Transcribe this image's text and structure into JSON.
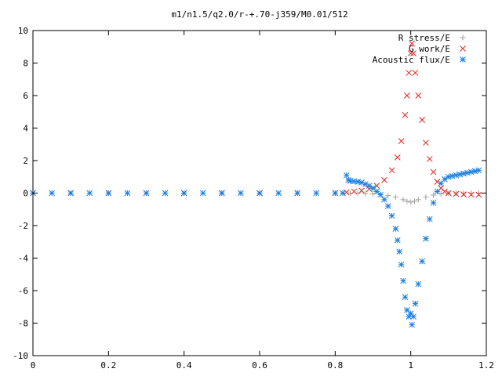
{
  "chart_data": {
    "type": "scatter",
    "title": "m1/n1.5/q2.0/r-+.70-j359/M0.01/512",
    "xlabel": "",
    "ylabel": "",
    "xlim": [
      0,
      1.2
    ],
    "ylim": [
      -10,
      10
    ],
    "x_ticks": [
      "0",
      "0.2",
      "0.4",
      "0.6",
      "0.8",
      "1",
      "1.2"
    ],
    "y_ticks": [
      "10",
      "8",
      "6",
      "4",
      "2",
      "0",
      "-2",
      "-4",
      "-6",
      "-8",
      "-10"
    ],
    "grid": false,
    "legend_position": "top-right",
    "series": [
      {
        "name": "R stress/E",
        "marker": "plus",
        "color": "#a0a0a0",
        "points": [
          [
            0.0,
            0.0
          ],
          [
            0.1,
            0.0
          ],
          [
            0.2,
            0.0
          ],
          [
            0.3,
            0.0
          ],
          [
            0.4,
            0.0
          ],
          [
            0.5,
            0.0
          ],
          [
            0.6,
            0.0
          ],
          [
            0.7,
            0.0
          ],
          [
            0.8,
            0.0
          ],
          [
            0.84,
            0.0
          ],
          [
            0.86,
            0.0
          ],
          [
            0.88,
            -0.02
          ],
          [
            0.9,
            -0.05
          ],
          [
            0.92,
            -0.08
          ],
          [
            0.94,
            -0.15
          ],
          [
            0.96,
            -0.25
          ],
          [
            0.98,
            -0.4
          ],
          [
            0.99,
            -0.5
          ],
          [
            1.0,
            -0.55
          ],
          [
            1.01,
            -0.5
          ],
          [
            1.02,
            -0.4
          ],
          [
            1.04,
            -0.25
          ],
          [
            1.06,
            -0.12
          ],
          [
            1.08,
            -0.05
          ],
          [
            1.1,
            -0.02
          ],
          [
            1.12,
            0.0
          ],
          [
            1.14,
            0.0
          ],
          [
            1.16,
            0.0
          ],
          [
            1.18,
            0.0
          ]
        ]
      },
      {
        "name": "G work/E",
        "marker": "cross",
        "color": "#e8201a",
        "points": [
          [
            0.0,
            0.0
          ],
          [
            0.1,
            0.0
          ],
          [
            0.2,
            0.0
          ],
          [
            0.3,
            0.0
          ],
          [
            0.4,
            0.0
          ],
          [
            0.5,
            0.0
          ],
          [
            0.6,
            0.0
          ],
          [
            0.7,
            0.0
          ],
          [
            0.8,
            0.0
          ],
          [
            0.83,
            0.05
          ],
          [
            0.85,
            0.1
          ],
          [
            0.87,
            0.15
          ],
          [
            0.89,
            0.25
          ],
          [
            0.91,
            0.45
          ],
          [
            0.93,
            0.8
          ],
          [
            0.95,
            1.4
          ],
          [
            0.965,
            2.2
          ],
          [
            0.975,
            3.2
          ],
          [
            0.985,
            4.8
          ],
          [
            0.99,
            6.0
          ],
          [
            0.995,
            7.4
          ],
          [
            1.0,
            8.6
          ],
          [
            1.003,
            9.2
          ],
          [
            1.007,
            8.6
          ],
          [
            1.012,
            7.4
          ],
          [
            1.02,
            6.0
          ],
          [
            1.03,
            4.5
          ],
          [
            1.04,
            3.1
          ],
          [
            1.05,
            2.1
          ],
          [
            1.06,
            1.3
          ],
          [
            1.07,
            0.7
          ],
          [
            1.08,
            0.3
          ],
          [
            1.09,
            0.1
          ],
          [
            1.1,
            0.0
          ],
          [
            1.12,
            -0.05
          ],
          [
            1.14,
            -0.08
          ],
          [
            1.16,
            -0.1
          ],
          [
            1.18,
            -0.1
          ]
        ]
      },
      {
        "name": "Acoustic flux/E",
        "marker": "star",
        "color": "#1a7fe0",
        "points": [
          [
            0.0,
            0.0
          ],
          [
            0.05,
            0.0
          ],
          [
            0.1,
            0.0
          ],
          [
            0.15,
            0.0
          ],
          [
            0.2,
            0.0
          ],
          [
            0.25,
            0.0
          ],
          [
            0.3,
            0.0
          ],
          [
            0.35,
            0.0
          ],
          [
            0.4,
            0.0
          ],
          [
            0.45,
            0.0
          ],
          [
            0.5,
            0.0
          ],
          [
            0.55,
            0.0
          ],
          [
            0.6,
            0.0
          ],
          [
            0.65,
            0.0
          ],
          [
            0.7,
            0.0
          ],
          [
            0.75,
            0.0
          ],
          [
            0.8,
            0.0
          ],
          [
            0.82,
            0.0
          ],
          [
            0.83,
            1.1
          ],
          [
            0.835,
            0.8
          ],
          [
            0.84,
            0.75
          ],
          [
            0.85,
            0.72
          ],
          [
            0.86,
            0.7
          ],
          [
            0.87,
            0.65
          ],
          [
            0.88,
            0.55
          ],
          [
            0.89,
            0.45
          ],
          [
            0.9,
            0.3
          ],
          [
            0.91,
            0.1
          ],
          [
            0.92,
            -0.1
          ],
          [
            0.93,
            -0.4
          ],
          [
            0.94,
            -0.8
          ],
          [
            0.95,
            -1.4
          ],
          [
            0.96,
            -2.2
          ],
          [
            0.965,
            -2.9
          ],
          [
            0.97,
            -3.6
          ],
          [
            0.975,
            -4.4
          ],
          [
            0.98,
            -5.4
          ],
          [
            0.985,
            -6.4
          ],
          [
            0.99,
            -7.2
          ],
          [
            0.995,
            -7.6
          ],
          [
            1.0,
            -7.4
          ],
          [
            1.003,
            -8.1
          ],
          [
            1.007,
            -7.6
          ],
          [
            1.012,
            -6.8
          ],
          [
            1.02,
            -5.6
          ],
          [
            1.03,
            -4.2
          ],
          [
            1.04,
            -2.8
          ],
          [
            1.05,
            -1.6
          ],
          [
            1.06,
            -0.6
          ],
          [
            1.07,
            0.1
          ],
          [
            1.08,
            0.6
          ],
          [
            1.09,
            0.85
          ],
          [
            1.1,
            1.0
          ],
          [
            1.11,
            1.05
          ],
          [
            1.12,
            1.1
          ],
          [
            1.13,
            1.15
          ],
          [
            1.14,
            1.2
          ],
          [
            1.15,
            1.25
          ],
          [
            1.16,
            1.3
          ],
          [
            1.17,
            1.35
          ],
          [
            1.18,
            1.4
          ]
        ]
      }
    ]
  }
}
